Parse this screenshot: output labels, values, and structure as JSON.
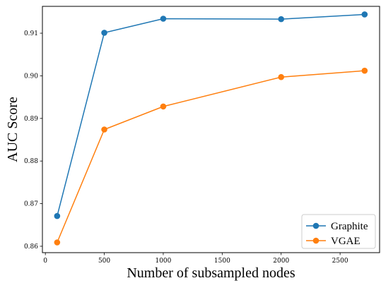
{
  "chart_data": {
    "type": "line",
    "title": "",
    "xlabel": "Number of subsampled nodes",
    "ylabel": "AUC Score",
    "xlim": [
      -25,
      2835
    ],
    "ylim": [
      0.8585,
      0.9163
    ],
    "x_ticks": [
      0,
      500,
      1000,
      1500,
      2000,
      2500
    ],
    "y_ticks": [
      0.86,
      0.87,
      0.88,
      0.89,
      0.9,
      0.91
    ],
    "x_tick_labels": [
      "0",
      "500",
      "1000",
      "1500",
      "2000",
      "2500"
    ],
    "y_tick_labels": [
      "0.86",
      "0.87",
      "0.88",
      "0.89",
      "0.90",
      "0.91"
    ],
    "grid": false,
    "legend_position": "bottom-right",
    "x": [
      100,
      500,
      1000,
      2000,
      2708
    ],
    "series": [
      {
        "name": "Graphite",
        "color": "#1f77b4",
        "values": [
          0.8671,
          0.9101,
          0.9134,
          0.9133,
          0.9144
        ]
      },
      {
        "name": "VGAE",
        "color": "#ff7f0e",
        "values": [
          0.8609,
          0.8874,
          0.8928,
          0.8997,
          0.9012
        ]
      }
    ]
  }
}
